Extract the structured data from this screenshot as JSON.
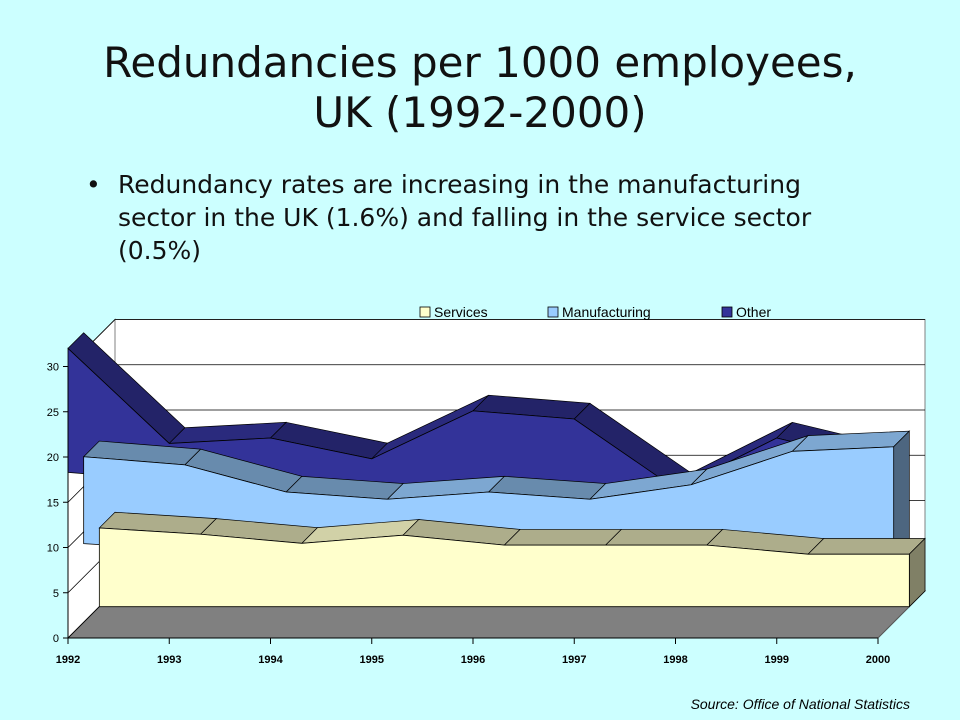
{
  "slide": {
    "title_line1": "Redundancies per 1000 employees,",
    "title_line2": "UK (1992-2000)",
    "bullet": "Redundancy rates are increasing in the manufacturing sector in the UK (1.6%) and falling in the service sector (0.5%)",
    "bullet_marker": "•",
    "source": "Source: Office of National Statistics"
  },
  "chart_data": {
    "type": "area",
    "stacked": true,
    "three_d": true,
    "x": [
      "1992",
      "1993",
      "1994",
      "1995",
      "1996",
      "1997",
      "1998",
      "1999",
      "2000"
    ],
    "yticks": [
      "0",
      "5",
      "10",
      "15",
      "20",
      "25",
      "30"
    ],
    "ylim": [
      0,
      30
    ],
    "grid": true,
    "legend_position": "top",
    "series": [
      {
        "name": "Services",
        "values": [
          8.7,
          8.0,
          7.0,
          7.9,
          6.8,
          6.8,
          6.8,
          5.8,
          5.8
        ],
        "color": "#ffffcc"
      },
      {
        "name": "Manufacturing",
        "values": [
          9.6,
          9.4,
          7.4,
          5.7,
          7.6,
          6.8,
          8.4,
          13.1,
          13.6
        ],
        "color": "#99ccff"
      },
      {
        "name": "Other",
        "values": [
          13.7,
          4.1,
          7.7,
          6.2,
          10.7,
          10.6,
          1.3,
          3.2,
          0.0
        ],
        "color": "#333399"
      }
    ]
  }
}
